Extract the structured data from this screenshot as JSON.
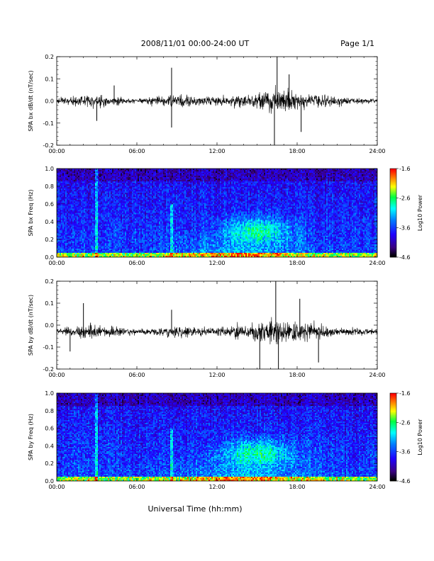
{
  "header": {
    "title": "2008/11/01  00:00-24:00 UT",
    "page": "Page 1/1"
  },
  "x_axis": {
    "ticks": [
      "00:00",
      "06:00",
      "12:00",
      "18:00",
      "24:00"
    ],
    "label": "Universal Time (hh:mm)"
  },
  "colors": {
    "trace": "#000000",
    "spectrogram_colormap": [
      "#000000",
      "#3a0080",
      "#2000ff",
      "#0080ff",
      "#00ffff",
      "#00ff40",
      "#ffff00",
      "#ff8000",
      "#ff0000"
    ]
  },
  "chart_data": [
    {
      "type": "line",
      "panel": "bx-waveform",
      "ylabel": "SPA bx dB/dt (nT/sec)",
      "ylim": [
        -0.2,
        0.2
      ],
      "yticks": [
        "0.2",
        "0.1",
        "0.0",
        "-0.1",
        "-0.2"
      ],
      "xlim": [
        0,
        24
      ],
      "baseline": 0.0,
      "envelope": {
        "x": [
          0,
          3,
          6,
          9,
          12,
          15,
          16.5,
          18,
          21,
          24
        ],
        "amplitude": [
          0.03,
          0.06,
          0.02,
          0.06,
          0.04,
          0.07,
          0.12,
          0.08,
          0.04,
          0.02
        ]
      },
      "spikes": [
        {
          "x": 3.0,
          "y": -0.09
        },
        {
          "x": 4.3,
          "y": 0.07
        },
        {
          "x": 8.6,
          "y": 0.15
        },
        {
          "x": 8.6,
          "y": -0.12
        },
        {
          "x": 16.5,
          "y": 0.2
        },
        {
          "x": 16.3,
          "y": -0.2
        },
        {
          "x": 17.4,
          "y": 0.12
        },
        {
          "x": 18.3,
          "y": -0.14
        }
      ]
    },
    {
      "type": "heatmap",
      "panel": "bx-spectrogram",
      "ylabel": "SPA bx Freq (Hz)",
      "ylim": [
        0.0,
        1.0
      ],
      "yticks": [
        "1.0",
        "0.8",
        "0.6",
        "0.4",
        "0.2",
        "0.0"
      ],
      "xlim": [
        0,
        24
      ],
      "colorbar": {
        "label": "Log10 Power",
        "range": [
          -4.6,
          -1.6
        ],
        "ticks": [
          "-1.6",
          "-2.6",
          "-3.6",
          "-4.6"
        ]
      },
      "features": [
        {
          "kind": "vertical-line",
          "x": 3.0,
          "freq_range": [
            0.0,
            1.0
          ]
        },
        {
          "kind": "vertical-line",
          "x": 8.6,
          "freq_range": [
            0.0,
            0.6
          ]
        },
        {
          "kind": "blob",
          "x_center": 15.0,
          "x_width": 3.5,
          "freq_center": 0.3,
          "freq_width": 0.2
        },
        {
          "kind": "band",
          "freq_range": [
            0.0,
            0.05
          ]
        },
        {
          "kind": "broad-enhancement",
          "x_range": [
            7,
            21
          ],
          "freq_range": [
            0.0,
            0.3
          ]
        }
      ]
    },
    {
      "type": "line",
      "panel": "by-waveform",
      "ylabel": "SPA by dB/dt (nT/sec)",
      "ylim": [
        -0.2,
        0.2
      ],
      "yticks": [
        "0.2",
        "0.1",
        "0.0",
        "-0.1",
        "-0.2"
      ],
      "xlim": [
        0,
        24
      ],
      "baseline": -0.03,
      "envelope": {
        "x": [
          0,
          3,
          6,
          9,
          12,
          15,
          16.5,
          18,
          21,
          24
        ],
        "amplitude": [
          0.03,
          0.07,
          0.02,
          0.05,
          0.04,
          0.08,
          0.12,
          0.09,
          0.04,
          0.02
        ]
      },
      "spikes": [
        {
          "x": 1.0,
          "y": -0.12
        },
        {
          "x": 2.0,
          "y": 0.1
        },
        {
          "x": 8.6,
          "y": 0.07
        },
        {
          "x": 15.2,
          "y": -0.2
        },
        {
          "x": 16.4,
          "y": 0.2
        },
        {
          "x": 16.6,
          "y": -0.2
        },
        {
          "x": 18.2,
          "y": 0.12
        },
        {
          "x": 19.6,
          "y": -0.17
        }
      ]
    },
    {
      "type": "heatmap",
      "panel": "by-spectrogram",
      "ylabel": "SPA by Freq (Hz)",
      "ylim": [
        0.0,
        1.0
      ],
      "yticks": [
        "1.0",
        "0.8",
        "0.6",
        "0.4",
        "0.2",
        "0.0"
      ],
      "xlim": [
        0,
        24
      ],
      "colorbar": {
        "label": "Log10 Power",
        "range": [
          -4.6,
          -1.6
        ],
        "ticks": [
          "-1.6",
          "-2.6",
          "-3.6",
          "-4.6"
        ]
      },
      "features": [
        {
          "kind": "vertical-line",
          "x": 3.0,
          "freq_range": [
            0.0,
            1.0
          ]
        },
        {
          "kind": "vertical-line",
          "x": 8.6,
          "freq_range": [
            0.0,
            0.6
          ]
        },
        {
          "kind": "blob",
          "x_center": 15.0,
          "x_width": 4.0,
          "freq_center": 0.32,
          "freq_width": 0.22
        },
        {
          "kind": "band",
          "freq_range": [
            0.0,
            0.05
          ]
        },
        {
          "kind": "broad-enhancement",
          "x_range": [
            7,
            21
          ],
          "freq_range": [
            0.0,
            0.3
          ]
        }
      ]
    }
  ]
}
